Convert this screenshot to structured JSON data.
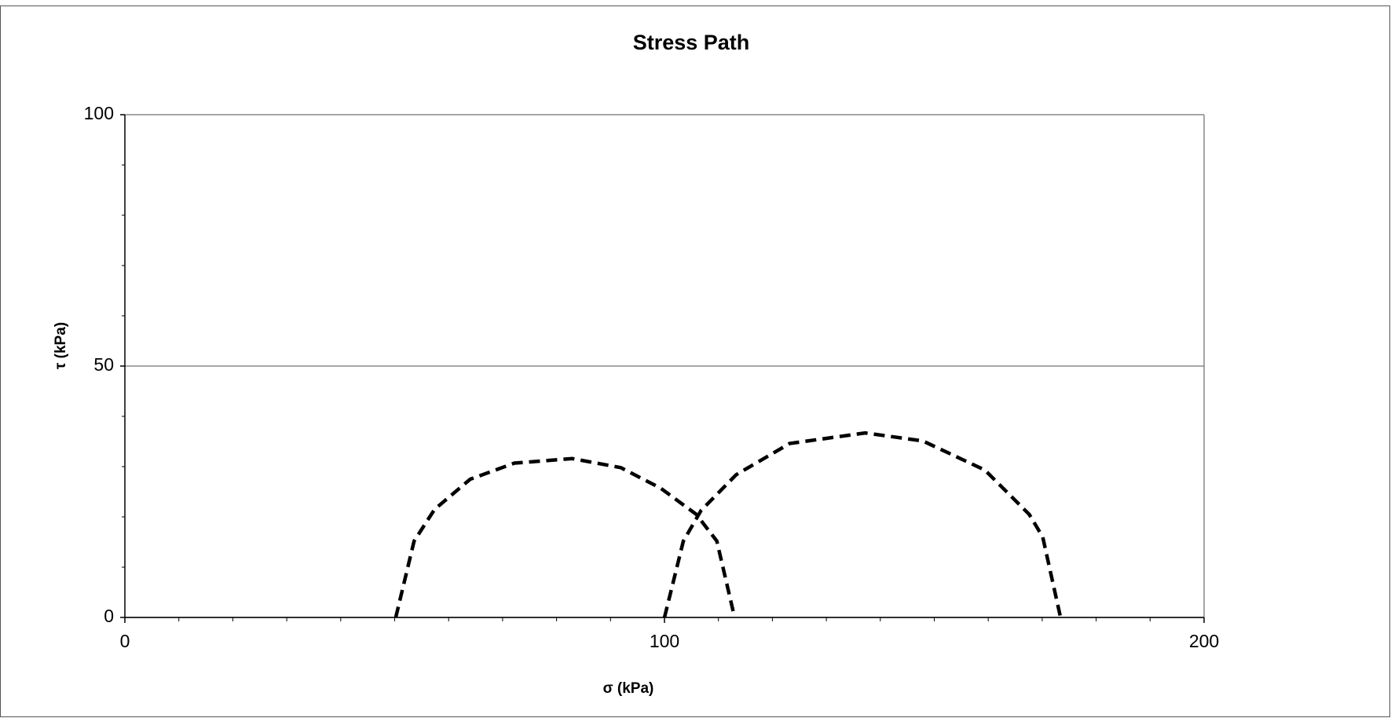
{
  "chart_data": {
    "type": "line",
    "title": "Stress Path",
    "x_label": "σ  (kPa)",
    "y_label": "τ   (kPa)",
    "xlim": [
      0,
      200
    ],
    "xticks": [
      0,
      100,
      200
    ],
    "ylim": [
      0,
      100
    ],
    "yticks": [
      0,
      50,
      100
    ],
    "grid": true,
    "series": [
      {
        "color": "#000000",
        "dashed": true,
        "x": [
          50.2,
          53.6,
          57.4,
          64,
          72.2,
          82.9,
          91.9,
          99.3,
          105.9,
          109.7,
          113
        ],
        "values": [
          0,
          15.2,
          21.5,
          27.5,
          30.7,
          31.6,
          29.8,
          25.7,
          20.5,
          15.2,
          0
        ]
      },
      {
        "color": "#000000",
        "dashed": true,
        "x": [
          100,
          103.5,
          106.8,
          113.3,
          123.2,
          137.2,
          147.9,
          159.4,
          167.6,
          170.1,
          173.4
        ],
        "values": [
          0,
          15.2,
          21.3,
          28.4,
          34.6,
          36.7,
          35.1,
          29.3,
          20.5,
          16,
          0
        ]
      }
    ]
  }
}
